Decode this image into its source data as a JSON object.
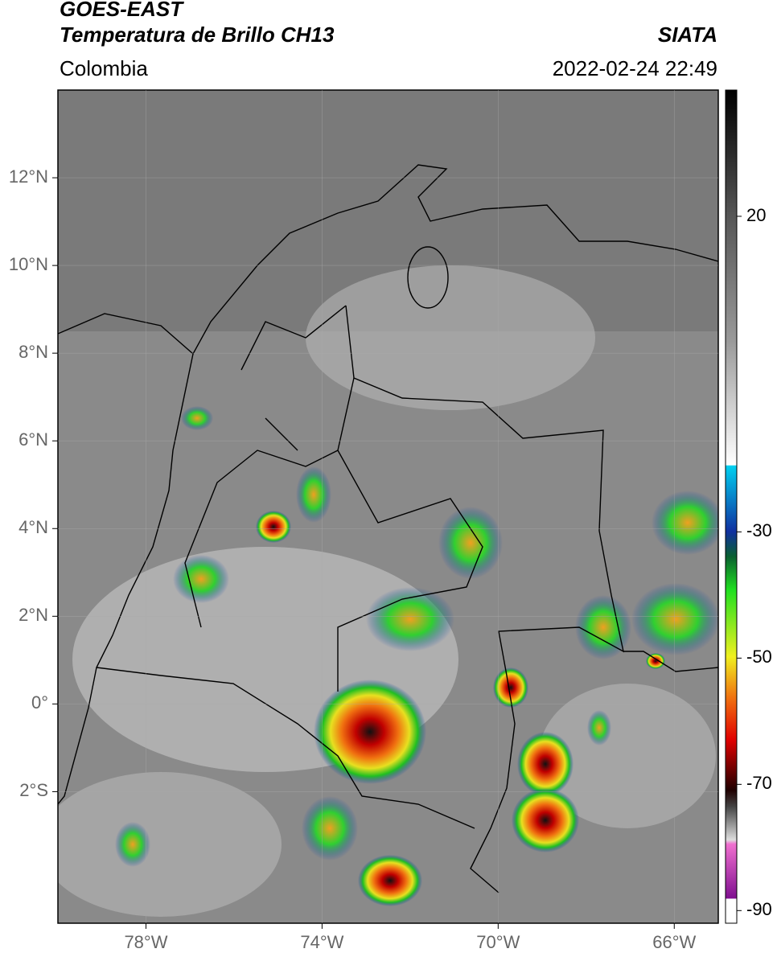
{
  "header": {
    "title": "GOES-EAST",
    "subtitle": "Temperatura de Brillo CH13",
    "source": "SIATA",
    "region": "Colombia",
    "datetime": "2022-02-24 22:49"
  },
  "map": {
    "xlim": [
      -80,
      -65
    ],
    "ylim": [
      -5,
      14
    ],
    "xticks": [
      {
        "value": -78,
        "label": "78°W"
      },
      {
        "value": -74,
        "label": "74°W"
      },
      {
        "value": -70,
        "label": "70°W"
      },
      {
        "value": -66,
        "label": "66°W"
      }
    ],
    "yticks": [
      {
        "value": 12,
        "label": "12°N"
      },
      {
        "value": 10,
        "label": "10°N"
      },
      {
        "value": 8,
        "label": "8°N"
      },
      {
        "value": 6,
        "label": "6°N"
      },
      {
        "value": 4,
        "label": "4°N"
      },
      {
        "value": 2,
        "label": "2°N"
      },
      {
        "value": 0,
        "label": "0°"
      },
      {
        "value": -2,
        "label": "2°S"
      }
    ],
    "grid": true
  },
  "colorbar": {
    "lim": [
      -92,
      40
    ],
    "ticks": [
      20,
      -30,
      -50,
      -70,
      -90
    ]
  }
}
